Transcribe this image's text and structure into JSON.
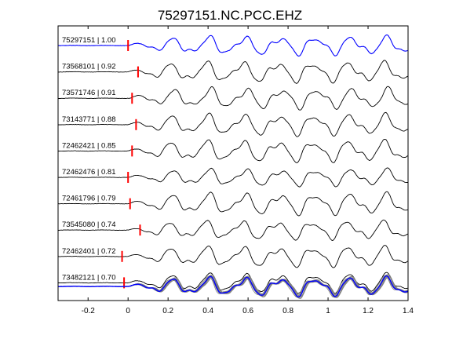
{
  "chart_data": {
    "type": "line",
    "title": "75297151.NC.PCC.EHZ",
    "xlabel": "",
    "ylabel": "",
    "xlim": [
      -0.35,
      1.4
    ],
    "x_ticks": [
      -0.2,
      0,
      0.2,
      0.4,
      0.6,
      0.8,
      1,
      1.2,
      1.4
    ],
    "x_tick_labels": [
      "-0.2",
      "0",
      "0.2",
      "0.4",
      "0.6",
      "0.8",
      "1",
      "1.2",
      "1.4"
    ],
    "grid": false,
    "reference_color": "#0000ff",
    "trace_color": "#000000",
    "stack_color": "#808080",
    "pick_color": "#ff0000",
    "traces": [
      {
        "label": "75297151 | 1.00",
        "pick_x": 0.0,
        "reference": true
      },
      {
        "label": "73568101 | 0.92",
        "pick_x": 0.05
      },
      {
        "label": "73571746 | 0.91",
        "pick_x": 0.02
      },
      {
        "label": "73143771 | 0.88",
        "pick_x": 0.04
      },
      {
        "label": "72462421 | 0.85",
        "pick_x": 0.02
      },
      {
        "label": "72462476 | 0.81",
        "pick_x": 0.0
      },
      {
        "label": "72461796 | 0.79",
        "pick_x": 0.01
      },
      {
        "label": "73545080 | 0.74",
        "pick_x": 0.06
      },
      {
        "label": "72462401 | 0.72",
        "pick_x": -0.03
      },
      {
        "label": "73482121 | 0.70",
        "pick_x": -0.02
      }
    ]
  }
}
